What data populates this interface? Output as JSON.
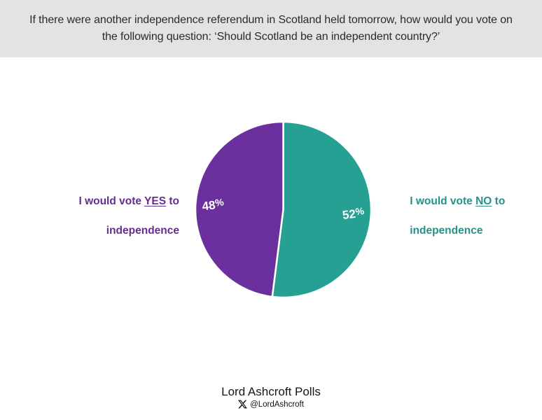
{
  "header": {
    "question": "If there were another independence referendum in Scotland held tomorrow, how would you vote on the following question: ‘Should Scotland be an independent country?’"
  },
  "chart_data": {
    "type": "pie",
    "title": "If there were another independence referendum in Scotland held tomorrow, how would you vote on the following question: ‘Should Scotland be an independent country?’",
    "start_angle_deg": 0,
    "direction": "clockwise",
    "separator_color": "#FFFFFF",
    "label_rotation_deg": -7,
    "slices": [
      {
        "label": "I would vote NO to independence",
        "value": 52,
        "pct_label": "52%",
        "color": "#26A092"
      },
      {
        "label": "I would vote YES to independence",
        "value": 48,
        "pct_label": "48%",
        "color": "#6B309E"
      }
    ],
    "legend_position": "side-callouts",
    "grid": false
  },
  "callouts": {
    "yes": {
      "prefix": "I would vote ",
      "emph": "YES",
      "suffix": " to",
      "line2": "independence",
      "color": "#662D91"
    },
    "no": {
      "prefix": "I would vote ",
      "emph": "NO",
      "suffix": " to",
      "line2": "independence",
      "color": "#269185"
    }
  },
  "footer": {
    "brand": "Lord Ashcroft Polls",
    "x_icon": "x-logo",
    "handle": "@LordAshcroft"
  }
}
